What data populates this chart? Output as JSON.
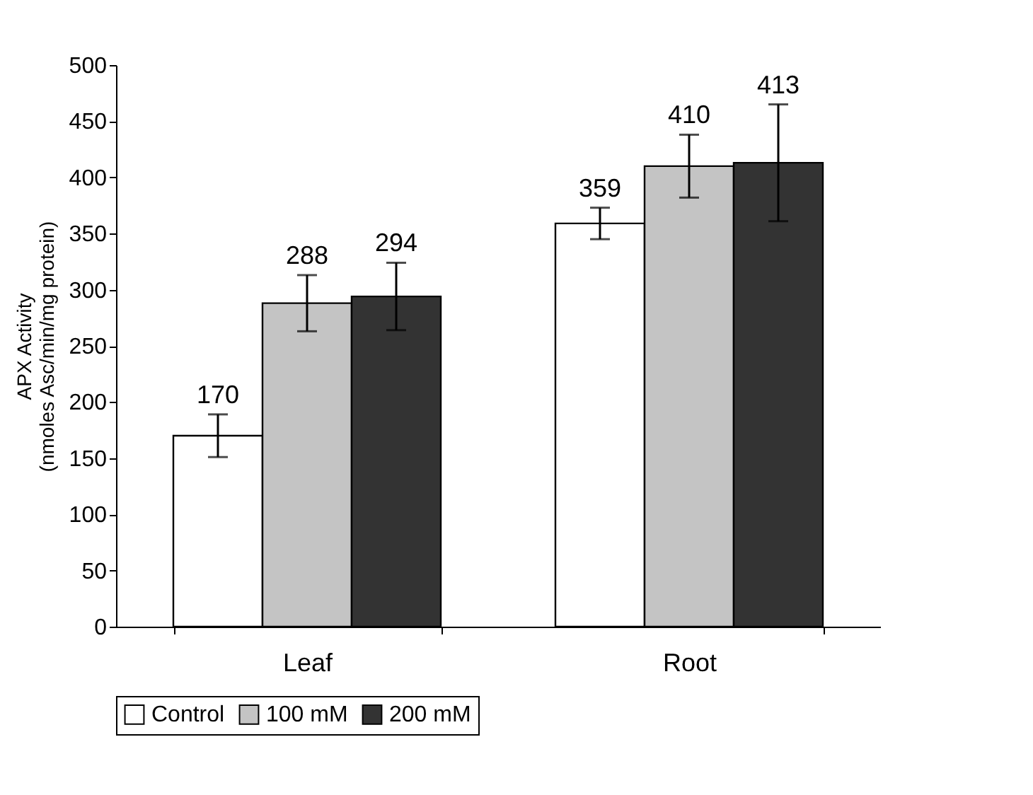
{
  "chart_data": {
    "type": "bar",
    "ylabel": "APX Activity\n(nmoles Asc/min/mg protein)",
    "categories": [
      "Leaf",
      "Root"
    ],
    "series": [
      {
        "name": "Control",
        "color": "#ffffff",
        "values": [
          170,
          359
        ],
        "errors": [
          19,
          14
        ]
      },
      {
        "name": "100 mM",
        "color": "#c4c4c4",
        "values": [
          288,
          410
        ],
        "errors": [
          25,
          28
        ]
      },
      {
        "name": "200 mM",
        "color": "#333333",
        "values": [
          294,
          413
        ],
        "errors": [
          30,
          52
        ]
      }
    ],
    "ylim": [
      0,
      500
    ],
    "yticks": [
      0,
      50,
      100,
      150,
      200,
      250,
      300,
      350,
      400,
      450,
      500
    ],
    "data_labels": true,
    "legend": "bottom"
  }
}
